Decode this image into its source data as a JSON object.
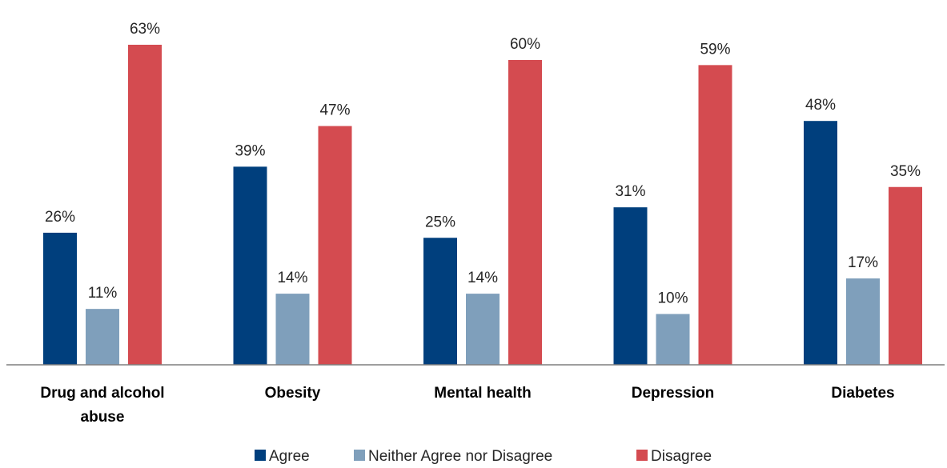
{
  "chart_data": {
    "type": "bar",
    "categories": [
      [
        "Drug and alcohol",
        "abuse"
      ],
      [
        "Obesity"
      ],
      [
        "Mental health"
      ],
      [
        "Depression"
      ],
      [
        "Diabetes"
      ]
    ],
    "series": [
      {
        "name": "Agree",
        "color": "#003f7d",
        "values": [
          26,
          39,
          25,
          31,
          48
        ],
        "labels": [
          "26%",
          "39%",
          "25%",
          "31%",
          "48%"
        ]
      },
      {
        "name": "Neither Agree nor Disagree",
        "color": "#7f9fbb",
        "values": [
          11,
          14,
          14,
          10,
          17
        ],
        "labels": [
          "11%",
          "14%",
          "14%",
          "10%",
          "17%"
        ]
      },
      {
        "name": "Disagree",
        "color": "#d44b50",
        "values": [
          63,
          47,
          60,
          59,
          35
        ],
        "labels": [
          "63%",
          "47%",
          "60%",
          "59%",
          "35%"
        ]
      }
    ],
    "ylim": [
      0,
      70
    ],
    "grid": false,
    "legend": "bottom"
  }
}
